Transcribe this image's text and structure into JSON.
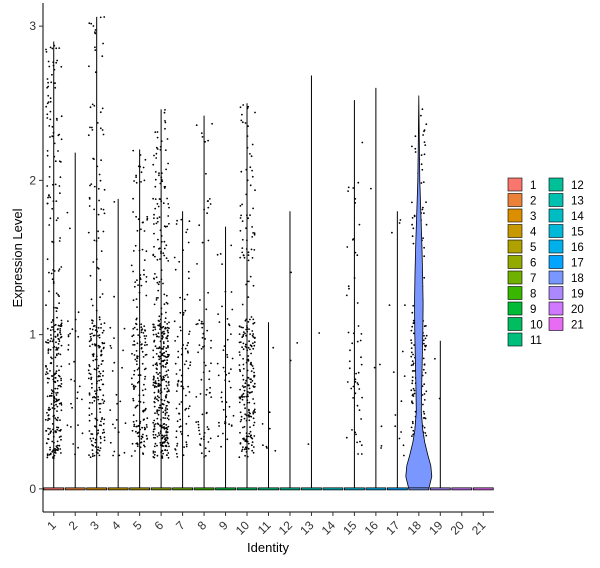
{
  "chart_data": {
    "type": "violin",
    "xlabel": "Identity",
    "ylabel": "Expression Level",
    "categories": [
      "1",
      "2",
      "3",
      "4",
      "5",
      "6",
      "7",
      "8",
      "9",
      "10",
      "11",
      "12",
      "13",
      "14",
      "15",
      "16",
      "17",
      "18",
      "19",
      "20",
      "21"
    ],
    "ylim": [
      -0.15,
      3.15
    ],
    "y_ticks": [
      0,
      1,
      2,
      3
    ],
    "max_expression": [
      2.9,
      2.18,
      3.06,
      1.88,
      2.2,
      2.46,
      1.8,
      2.42,
      1.7,
      2.5,
      1.08,
      1.8,
      2.68,
      0,
      2.52,
      2.6,
      1.8,
      2.55,
      0.96,
      0,
      0
    ],
    "points_nonzero": [
      320,
      30,
      230,
      25,
      190,
      420,
      90,
      80,
      50,
      260,
      8,
      3,
      2,
      0,
      55,
      6,
      15,
      210,
      2,
      0,
      0
    ],
    "legend_title": "",
    "legend_position": "right",
    "legend_columns": 2,
    "colors": [
      "#F8766D",
      "#EC8239",
      "#DB8E00",
      "#C79800",
      "#AFA100",
      "#93AA00",
      "#6FB000",
      "#39B600",
      "#00BA38",
      "#00BD5F",
      "#00BF7D",
      "#00C097",
      "#00C0AF",
      "#00BDC4",
      "#00B8D8",
      "#00B0EB",
      "#00A5FF",
      "#7997FF",
      "#AC88FF",
      "#D078FF",
      "#E76BF3"
    ]
  }
}
